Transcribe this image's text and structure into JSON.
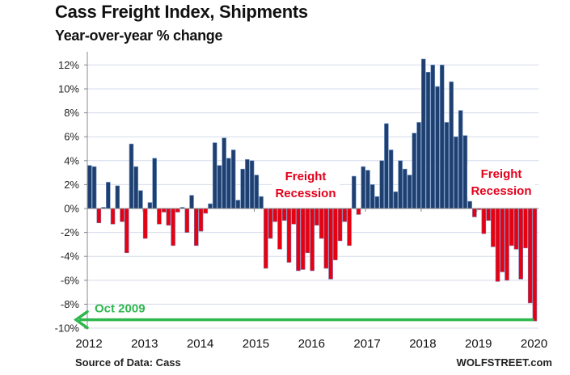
{
  "chart_data": {
    "type": "bar",
    "title": "Cass Freight Index, Shipments",
    "subtitle": "Year-over-year % change",
    "xlabel": "",
    "ylabel": "",
    "ylim": [
      -10,
      12
    ],
    "yticks": [
      12,
      10,
      8,
      6,
      4,
      2,
      0,
      -2,
      -4,
      -6,
      -8,
      -10
    ],
    "ytick_labels": [
      "12%",
      "10%",
      "8%",
      "6%",
      "4%",
      "2%",
      "0%",
      "-2%",
      "-4%",
      "-6%",
      "-8%",
      "-10%"
    ],
    "xtick_labels": [
      "2012",
      "2013",
      "2014",
      "2015",
      "2016",
      "2017",
      "2018",
      "2019",
      "2020"
    ],
    "grid": true,
    "start": "Jan 2012",
    "frequency": "monthly",
    "positive_color": "#1f3f6e",
    "negative_color": "#e8000f",
    "values": [
      3.6,
      3.5,
      -1.2,
      0.1,
      2.2,
      -1.3,
      1.9,
      -1.1,
      -3.7,
      5.4,
      3.5,
      1.5,
      -2.5,
      0.5,
      4.2,
      -1.3,
      -0.3,
      -1.4,
      -3.1,
      -0.3,
      0.1,
      -2.0,
      1.1,
      -3.1,
      -1.9,
      -0.4,
      0.4,
      5.5,
      3.6,
      5.9,
      4.2,
      4.9,
      0.7,
      3.3,
      4.1,
      4.0,
      2.8,
      1.0,
      -5.0,
      -2.5,
      -1.1,
      -3.4,
      -1.0,
      -4.5,
      -1.3,
      -5.2,
      -5.1,
      -3.7,
      -5.2,
      -1.4,
      -2.5,
      -5.0,
      -5.9,
      -4.3,
      -2.7,
      -1.1,
      -3.1,
      2.7,
      -0.5,
      3.5,
      3.2,
      2.0,
      1.0,
      4.0,
      7.1,
      4.9,
      1.4,
      4.0,
      3.3,
      2.8,
      6.3,
      7.2,
      12.5,
      11.4,
      12.0,
      10.2,
      12.0,
      7.2,
      10.6,
      6.0,
      8.2,
      6.1,
      0.6,
      -0.7,
      -0.1,
      -2.1,
      -1.0,
      -3.2,
      -6.1,
      -5.3,
      -6.0,
      -3.1,
      -3.4,
      -5.9,
      -3.3,
      -7.9,
      -9.4
    ],
    "annotations": [
      {
        "text": [
          "Freight",
          "Recession"
        ],
        "color": "#e3001b",
        "near": "2015-2016"
      },
      {
        "text": [
          "Freight",
          "Recession"
        ],
        "color": "#e3001b",
        "near": "2019"
      },
      {
        "text": "Oct 2009",
        "color": "#2db84d",
        "type": "arrow",
        "value": -9.3,
        "direction": "left"
      }
    ]
  },
  "footer": {
    "source": "Source of Data: Cass",
    "brand": "WOLFSTREET.com"
  }
}
